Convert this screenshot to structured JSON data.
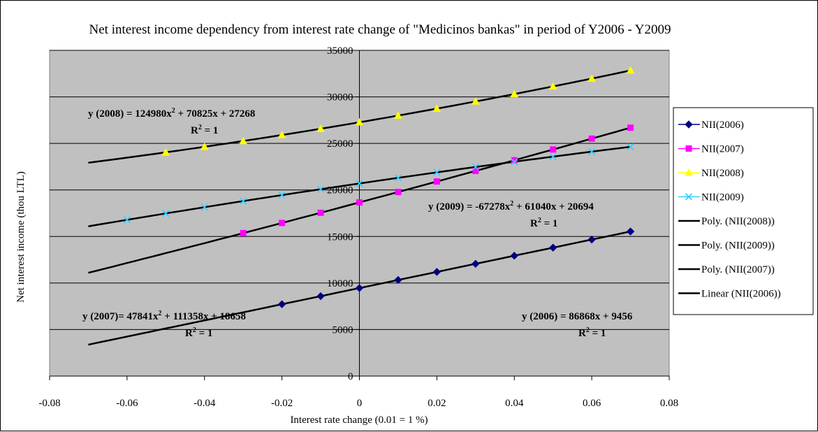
{
  "chart_data": {
    "type": "line",
    "title": "Net interest income dependency from interest rate change of \"Medicinos bankas\" in period of Y2006 - Y2009",
    "xlabel": "Interest rate change (0.01 = 1 %)",
    "ylabel": "Net interest income (thou LTL)",
    "xlim": [
      -0.08,
      0.08
    ],
    "ylim": [
      0,
      35000
    ],
    "xticks": [
      -0.08,
      -0.06,
      -0.04,
      -0.02,
      0,
      0.02,
      0.04,
      0.06,
      0.08
    ],
    "xtick_labels": [
      "-0.08",
      "-0.06",
      "-0.04",
      "-0.02",
      "0",
      "0.02",
      "0.04",
      "0.06",
      "0.08"
    ],
    "yticks": [
      0,
      5000,
      10000,
      15000,
      20000,
      25000,
      30000,
      35000
    ],
    "ytick_labels": [
      "0",
      "5000",
      "10000",
      "15000",
      "20000",
      "25000",
      "30000",
      "35000"
    ],
    "grid": "horizontal",
    "plot_background": "#c0c0c0",
    "legend_position": "right",
    "series": [
      {
        "name": "NII(2006)",
        "color": "#000080",
        "marker": "diamond",
        "x": [
          -0.02,
          -0.01,
          0,
          0.01,
          0.02,
          0.03,
          0.04,
          0.05,
          0.06,
          0.07
        ],
        "y": [
          7719,
          8587,
          9456,
          10325,
          11193,
          12062,
          12931,
          13799,
          14668,
          15537
        ]
      },
      {
        "name": "NII(2007)",
        "color": "#ff00ff",
        "marker": "square",
        "x": [
          -0.03,
          -0.02,
          -0.01,
          0,
          0.01,
          0.02,
          0.03,
          0.04,
          0.05,
          0.06,
          0.07
        ],
        "y": [
          15361,
          16450,
          17549,
          18658,
          19776,
          20904,
          22042,
          23189,
          24346,
          25512,
          26687
        ]
      },
      {
        "name": "NII(2008)",
        "color": "#ffff00",
        "marker": "triangle",
        "x": [
          -0.05,
          -0.04,
          -0.03,
          -0.02,
          -0.01,
          0,
          0.01,
          0.02,
          0.03,
          0.04,
          0.05,
          0.06,
          0.07
        ],
        "y": [
          24039,
          24635,
          25255,
          25901,
          26572,
          27268,
          27989,
          28735,
          29505,
          30301,
          31122,
          31968,
          32838
        ]
      },
      {
        "name": "NII(2009)",
        "color": "#33ccff",
        "marker": "x",
        "x": [
          -0.06,
          -0.05,
          -0.04,
          -0.03,
          -0.02,
          -0.01,
          0,
          0.01,
          0.02,
          0.03,
          0.04,
          0.05,
          0.06,
          0.07
        ],
        "y": [
          16789,
          17475,
          18146,
          18802,
          19446,
          20077,
          20694,
          21298,
          21888,
          22465,
          23028,
          23578,
          24114,
          24637
        ]
      }
    ],
    "trendlines": [
      {
        "name": "Poly. (NII(2008))",
        "kind": "poly2",
        "coef": [
          124980,
          70825,
          27268
        ],
        "x_range": [
          -0.07,
          0.07
        ],
        "color": "#000000"
      },
      {
        "name": "Poly. (NII(2009))",
        "kind": "poly2",
        "coef": [
          -67278,
          61040,
          20694
        ],
        "x_range": [
          -0.07,
          0.07
        ],
        "color": "#000000"
      },
      {
        "name": "Poly. (NII(2007))",
        "kind": "poly2",
        "coef": [
          47841,
          111358,
          18658
        ],
        "x_range": [
          -0.07,
          0.07
        ],
        "color": "#000000"
      },
      {
        "name": "Linear (NII(2006))",
        "kind": "linear",
        "coef": [
          86868,
          9456
        ],
        "x_range": [
          -0.07,
          0.07
        ],
        "color": "#000000"
      }
    ],
    "annotations": [
      {
        "id": "eq-2008",
        "line1": "y (2008) = 124980x",
        "sup1": "2",
        "line1b": " + 70825x + 27268",
        "r2": "R",
        "r2sup": "2",
        "r2val": " = 1"
      },
      {
        "id": "eq-2009",
        "line1": "y (2009) = -67278x",
        "sup1": "2",
        "line1b": " + 61040x + 20694",
        "r2": "R",
        "r2sup": "2",
        "r2val": " = 1"
      },
      {
        "id": "eq-2007",
        "line1": "y (2007)= 47841x",
        "sup1": "2",
        "line1b": " + 111358x + 18658",
        "r2": "R",
        "r2sup": "2",
        "r2val": " = 1"
      },
      {
        "id": "eq-2006",
        "line1": "y (2006) = 86868x + 9456",
        "sup1": "",
        "line1b": "",
        "r2": "R",
        "r2sup": "2",
        "r2val": " = 1"
      }
    ]
  }
}
